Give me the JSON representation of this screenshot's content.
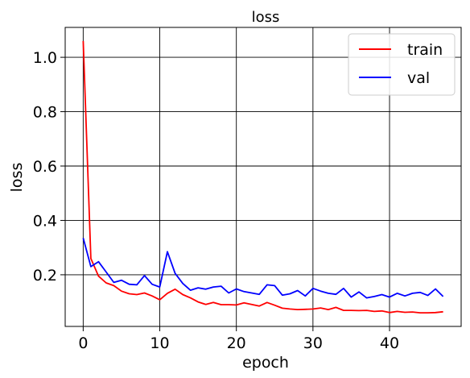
{
  "chart_data": {
    "type": "line",
    "title": "loss",
    "xlabel": "epoch",
    "ylabel": "loss",
    "xlim": [
      -2.35,
      49.35
    ],
    "ylim": [
      0.01,
      1.11
    ],
    "xticks": [
      0,
      10,
      20,
      30,
      40
    ],
    "yticks": [
      0.2,
      0.4,
      0.6,
      0.8,
      1.0
    ],
    "xtick_labels": [
      "0",
      "10",
      "20",
      "30",
      "40"
    ],
    "ytick_labels": [
      "0.2",
      "0.4",
      "0.6",
      "0.8",
      "1.0"
    ],
    "grid": true,
    "legend_position": "top-right",
    "x": [
      0,
      1,
      2,
      3,
      4,
      5,
      6,
      7,
      8,
      9,
      10,
      11,
      12,
      13,
      14,
      15,
      16,
      17,
      18,
      19,
      20,
      21,
      22,
      23,
      24,
      25,
      26,
      27,
      28,
      29,
      30,
      31,
      32,
      33,
      34,
      35,
      36,
      37,
      38,
      39,
      40,
      41,
      42,
      43,
      44,
      45,
      46,
      47
    ],
    "series": [
      {
        "name": "train",
        "color": "#ff0000",
        "values": [
          1.06,
          0.26,
          0.195,
          0.17,
          0.16,
          0.14,
          0.13,
          0.127,
          0.133,
          0.122,
          0.108,
          0.132,
          0.147,
          0.127,
          0.115,
          0.1,
          0.091,
          0.098,
          0.09,
          0.09,
          0.089,
          0.097,
          0.091,
          0.085,
          0.098,
          0.088,
          0.077,
          0.074,
          0.072,
          0.073,
          0.074,
          0.078,
          0.072,
          0.08,
          0.069,
          0.069,
          0.068,
          0.069,
          0.065,
          0.067,
          0.061,
          0.065,
          0.062,
          0.063,
          0.06,
          0.06,
          0.061,
          0.064
        ]
      },
      {
        "name": "val",
        "color": "#0000ff",
        "values": [
          0.335,
          0.23,
          0.248,
          0.21,
          0.172,
          0.18,
          0.165,
          0.163,
          0.197,
          0.165,
          0.155,
          0.285,
          0.205,
          0.168,
          0.143,
          0.152,
          0.147,
          0.155,
          0.158,
          0.133,
          0.148,
          0.138,
          0.133,
          0.128,
          0.163,
          0.16,
          0.125,
          0.13,
          0.142,
          0.122,
          0.15,
          0.14,
          0.132,
          0.128,
          0.15,
          0.118,
          0.137,
          0.115,
          0.12,
          0.127,
          0.118,
          0.132,
          0.122,
          0.132,
          0.135,
          0.124,
          0.148,
          0.12
        ]
      }
    ]
  }
}
